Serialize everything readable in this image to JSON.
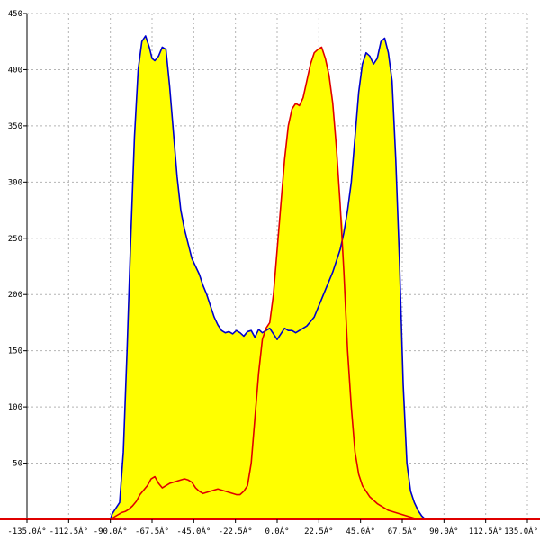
{
  "chart_data": {
    "type": "area",
    "title": "",
    "xlabel": "",
    "ylabel": "",
    "xlim": [
      -135,
      135
    ],
    "ylim": [
      0,
      450
    ],
    "grid": true,
    "x_ticks": [
      -135,
      -112.5,
      -90,
      -67.5,
      -45,
      -22.5,
      0,
      22.5,
      45,
      67.5,
      90,
      112.5,
      135
    ],
    "x_tick_labels": [
      "-135.0Â°",
      "-112.5Â°",
      "-90.0Â°",
      "-67.5Â°",
      "-45.0Â°",
      "-22.5Â°",
      "0.0Â°",
      "22.5Â°",
      "45.0Â°",
      "67.5Â°",
      "90.0Â°",
      "112.5Â°",
      "135.0Â°"
    ],
    "y_ticks": [
      50,
      100,
      150,
      200,
      250,
      300,
      350,
      400,
      450
    ],
    "y_tick_labels": [
      "50",
      "100",
      "150",
      "200",
      "250",
      "300",
      "350",
      "400",
      "450"
    ],
    "colors": {
      "fill": "#ffff00",
      "blue": "#0000cc",
      "red": "#e00000",
      "axis": "#000000",
      "grid": "#b4b4b4"
    },
    "series": [
      {
        "color": "#0000cc",
        "x": [
          -135,
          -90,
          -89,
          -87,
          -85,
          -83,
          -81,
          -79,
          -77,
          -75,
          -73,
          -71,
          -69,
          -67.5,
          -66,
          -64,
          -62,
          -60,
          -58,
          -56,
          -54,
          -52,
          -50,
          -48,
          -46,
          -44,
          -42,
          -40,
          -38,
          -36,
          -34,
          -32,
          -30,
          -28,
          -26,
          -24,
          -22,
          -20,
          -18,
          -16,
          -14,
          -12,
          -10,
          -8,
          -6,
          -4,
          -2,
          0,
          2,
          4,
          6,
          8,
          10,
          12,
          14,
          16,
          18,
          20,
          22,
          24,
          26,
          28,
          30,
          32,
          34,
          36,
          38,
          40,
          42,
          44,
          46,
          48,
          50,
          52,
          54,
          56,
          58,
          60,
          62,
          64,
          66,
          68,
          70,
          72,
          74,
          76,
          78,
          80,
          82,
          84,
          86,
          88,
          90,
          135
        ],
        "y": [
          0,
          0,
          5,
          10,
          15,
          60,
          150,
          250,
          340,
          400,
          425,
          430,
          420,
          410,
          408,
          412,
          420,
          418,
          385,
          345,
          305,
          275,
          258,
          245,
          232,
          225,
          218,
          208,
          200,
          190,
          180,
          173,
          168,
          166,
          167,
          165,
          168,
          166,
          163,
          167,
          168,
          162,
          169,
          166,
          168,
          170,
          165,
          160,
          165,
          170,
          168,
          168,
          166,
          168,
          170,
          172,
          176,
          180,
          188,
          196,
          204,
          212,
          220,
          230,
          240,
          255,
          275,
          300,
          340,
          380,
          405,
          415,
          412,
          405,
          410,
          425,
          428,
          415,
          390,
          320,
          230,
          120,
          50,
          25,
          15,
          8,
          3,
          0,
          0,
          0,
          0,
          0,
          0,
          0
        ]
      },
      {
        "color": "#e00000",
        "x": [
          -135,
          -90,
          -88,
          -86,
          -84,
          -82,
          -80,
          -78,
          -76,
          -74,
          -72,
          -70,
          -68,
          -66,
          -64,
          -62,
          -60,
          -58,
          -56,
          -54,
          -52,
          -50,
          -48,
          -46,
          -44,
          -42,
          -40,
          -38,
          -36,
          -34,
          -32,
          -30,
          -28,
          -26,
          -24,
          -22,
          -20,
          -18,
          -16,
          -14,
          -12,
          -10,
          -8,
          -6,
          -4,
          -2,
          0,
          2,
          4,
          6,
          8,
          10,
          12,
          14,
          16,
          18,
          20,
          22,
          24,
          26,
          28,
          30,
          32,
          34,
          36,
          38,
          40,
          42,
          44,
          46,
          48,
          50,
          52,
          54,
          56,
          58,
          60,
          62,
          64,
          66,
          68,
          70,
          72,
          74,
          76,
          78,
          80,
          82,
          84,
          86,
          88,
          90,
          135
        ],
        "y": [
          0,
          0,
          2,
          4,
          6,
          7,
          9,
          12,
          16,
          22,
          26,
          30,
          36,
          38,
          32,
          28,
          30,
          32,
          33,
          34,
          35,
          36,
          35,
          33,
          28,
          25,
          23,
          24,
          25,
          26,
          27,
          26,
          25,
          24,
          23,
          22,
          22,
          25,
          30,
          50,
          90,
          130,
          160,
          170,
          175,
          200,
          240,
          280,
          320,
          350,
          365,
          370,
          368,
          375,
          390,
          405,
          415,
          418,
          420,
          410,
          395,
          370,
          330,
          280,
          220,
          150,
          100,
          60,
          40,
          30,
          25,
          20,
          17,
          14,
          12,
          10,
          8,
          7,
          6,
          5,
          4,
          3,
          2,
          1,
          1,
          0,
          0,
          0,
          0,
          0,
          0,
          0,
          0
        ]
      }
    ]
  }
}
